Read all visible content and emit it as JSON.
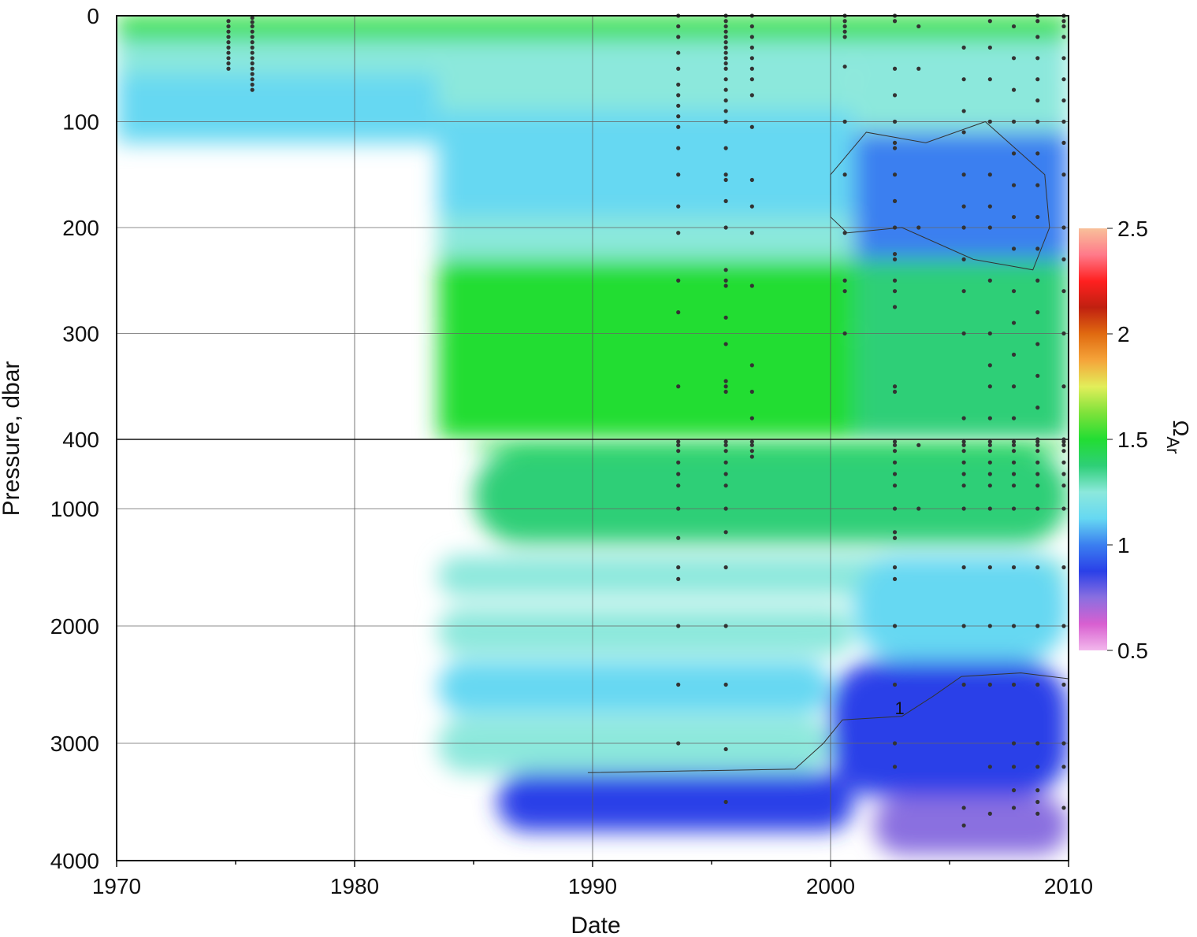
{
  "chart_data": {
    "type": "heatmap",
    "xlabel": "Date",
    "ylabel": "Pressure, dbar",
    "x_range": [
      1970,
      2010
    ],
    "x_ticks": [
      "1970",
      "1980",
      "1990",
      "2000",
      "2010"
    ],
    "y_upper_range": [
      0,
      400
    ],
    "y_lower_range": [
      400,
      4000
    ],
    "y_ticks": [
      "0",
      "100",
      "200",
      "300",
      "400",
      "1000",
      "2000",
      "3000",
      "4000"
    ],
    "y_scale": "split axis: 0-400 dbar expanded, 400-4000 dbar compressed",
    "colorbar": {
      "title": "ΩAr",
      "title_main": "Ω",
      "title_sub": "Ar",
      "range": [
        0.5,
        2.5
      ],
      "ticks": [
        "0.5",
        "1",
        "1.5",
        "2",
        "2.5"
      ],
      "colors": [
        "#f2b8ec",
        "#d85fd0",
        "#8a6fe0",
        "#2a40e8",
        "#3b7ff0",
        "#66d8f2",
        "#8ce8dc",
        "#2ecf77",
        "#22dd33",
        "#7ee23a",
        "#e2ee5a",
        "#f5a43a",
        "#e06a10",
        "#c02010",
        "#ff2020",
        "#ff7a8a",
        "#f8c09a"
      ]
    },
    "contour_level": 1,
    "contour_label": "1",
    "grid": true,
    "fields": [
      {
        "x0": 1970,
        "x1": 2010,
        "p0": 0,
        "p1": 22,
        "omega": 1.45
      },
      {
        "x0": 1970,
        "x1": 2010,
        "p0": 22,
        "p1": 55,
        "omega": 1.3
      },
      {
        "x0": 1970,
        "x1": 1983.5,
        "p0": 55,
        "p1": 120,
        "omega": 1.1
      },
      {
        "x0": 1983.5,
        "x1": 2001,
        "p0": 55,
        "p1": 90,
        "omega": 1.3
      },
      {
        "x0": 1983.5,
        "x1": 2001,
        "p0": 90,
        "p1": 190,
        "omega": 1.12
      },
      {
        "x0": 1983.5,
        "x1": 2001,
        "p0": 190,
        "p1": 230,
        "omega": 1.3
      },
      {
        "x0": 1983.5,
        "x1": 2001,
        "p0": 230,
        "p1": 300,
        "omega": 1.45
      },
      {
        "x0": 1983.5,
        "x1": 2001,
        "p0": 300,
        "p1": 400,
        "omega": 1.55
      },
      {
        "x0": 2001,
        "x1": 2010,
        "p0": 55,
        "p1": 110,
        "omega": 1.25
      },
      {
        "x0": 2001,
        "x1": 2010,
        "p0": 110,
        "p1": 230,
        "omega": 0.95
      },
      {
        "x0": 2001,
        "x1": 2010,
        "p0": 230,
        "p1": 400,
        "omega": 1.35
      },
      {
        "x0": 1985,
        "x1": 2010,
        "p0": 400,
        "p1": 480,
        "omega": 1.5
      },
      {
        "x0": 1985,
        "x1": 2010,
        "p0": 480,
        "p1": 1300,
        "omega": 1.4
      },
      {
        "x0": 1983.5,
        "x1": 2010,
        "p0": 1400,
        "p1": 1750,
        "omega": 1.25
      },
      {
        "x0": 1983.5,
        "x1": 2001,
        "p0": 1850,
        "p1": 2250,
        "omega": 1.22
      },
      {
        "x0": 2001,
        "x1": 2010,
        "p0": 1400,
        "p1": 2300,
        "omega": 1.1
      },
      {
        "x0": 1983.5,
        "x1": 2000,
        "p0": 2300,
        "p1": 2750,
        "omega": 1.08
      },
      {
        "x0": 1983.5,
        "x1": 2000,
        "p0": 2780,
        "p1": 3250,
        "omega": 1.22
      },
      {
        "x0": 2000,
        "x1": 2010,
        "p0": 2300,
        "p1": 3450,
        "omega": 0.9
      },
      {
        "x0": 1986,
        "x1": 2001,
        "p0": 3250,
        "p1": 3750,
        "omega": 0.85
      },
      {
        "x0": 2001.8,
        "x1": 2010,
        "p0": 3450,
        "p1": 3950,
        "omega": 0.75
      }
    ],
    "sample_profiles": [
      {
        "x": 1974.7,
        "pressures": [
          5,
          10,
          15,
          20,
          25,
          30,
          35,
          40,
          45,
          50
        ]
      },
      {
        "x": 1975.7,
        "pressures": [
          2,
          6,
          10,
          15,
          20,
          25,
          30,
          35,
          40,
          45,
          50,
          55,
          60,
          65,
          70
        ]
      },
      {
        "x": 1993.6,
        "pressures": [
          0,
          10,
          20,
          35,
          50,
          65,
          75,
          85,
          95,
          105,
          125,
          150,
          180,
          205,
          250,
          280,
          350,
          420,
          450,
          500,
          600,
          700,
          800,
          1000,
          1250,
          1500,
          1600,
          2000,
          2500,
          3000
        ]
      },
      {
        "x": 1995.6,
        "pressures": [
          0,
          5,
          10,
          15,
          20,
          25,
          30,
          35,
          40,
          45,
          50,
          60,
          70,
          80,
          90,
          100,
          125,
          150,
          155,
          175,
          200,
          240,
          250,
          255,
          285,
          310,
          345,
          350,
          355,
          420,
          450,
          500,
          600,
          700,
          800,
          1000,
          1200,
          1500,
          2000,
          2500,
          3050,
          3500
        ]
      },
      {
        "x": 1996.7,
        "pressures": [
          0,
          10,
          20,
          30,
          40,
          50,
          60,
          75,
          105,
          155,
          180,
          205,
          255,
          330,
          355,
          380,
          420,
          450,
          500,
          550
        ]
      },
      {
        "x": 2000.6,
        "pressures": [
          0,
          5,
          10,
          15,
          20,
          48,
          100,
          150,
          205,
          250,
          260,
          300
        ]
      },
      {
        "x": 2002.7,
        "pressures": [
          0,
          5,
          50,
          75,
          100,
          120,
          125,
          150,
          175,
          200,
          225,
          230,
          250,
          260,
          275,
          350,
          355,
          420,
          450,
          500,
          600,
          700,
          800,
          1000,
          1200,
          1250,
          1500,
          1600,
          2000,
          2500,
          3000,
          3200
        ]
      },
      {
        "x": 2003.7,
        "pressures": [
          10,
          50,
          200,
          450,
          1000
        ]
      },
      {
        "x": 2005.6,
        "pressures": [
          30,
          60,
          90,
          110,
          150,
          180,
          200,
          230,
          260,
          300,
          380,
          420,
          450,
          500,
          600,
          700,
          800,
          1000,
          1500,
          2000,
          2500,
          3550,
          3700
        ]
      },
      {
        "x": 2006.7,
        "pressures": [
          5,
          30,
          60,
          100,
          150,
          180,
          200,
          250,
          300,
          330,
          350,
          380,
          420,
          450,
          500,
          600,
          700,
          800,
          1000,
          1500,
          2000,
          2500,
          3200,
          3600
        ]
      },
      {
        "x": 2007.7,
        "pressures": [
          10,
          40,
          70,
          100,
          130,
          160,
          190,
          220,
          260,
          290,
          320,
          350,
          380,
          420,
          450,
          500,
          600,
          700,
          800,
          1000,
          1500,
          2000,
          2500,
          3000,
          3200,
          3400,
          3550
        ]
      },
      {
        "x": 2008.7,
        "pressures": [
          0,
          5,
          20,
          40,
          60,
          80,
          100,
          130,
          160,
          190,
          220,
          250,
          280,
          310,
          340,
          370,
          400,
          420,
          450,
          500,
          600,
          700,
          800,
          1000,
          1500,
          2000,
          2500,
          3000,
          3200,
          3400,
          3500,
          3600
        ]
      },
      {
        "x": 2009.8,
        "pressures": [
          0,
          5,
          10,
          20,
          40,
          60,
          80,
          100,
          120,
          150,
          200,
          230,
          260,
          300,
          350,
          400,
          420,
          450,
          500,
          600,
          700,
          800,
          1000,
          1500,
          2000,
          2500,
          3000,
          3200,
          3550
        ]
      }
    ]
  }
}
